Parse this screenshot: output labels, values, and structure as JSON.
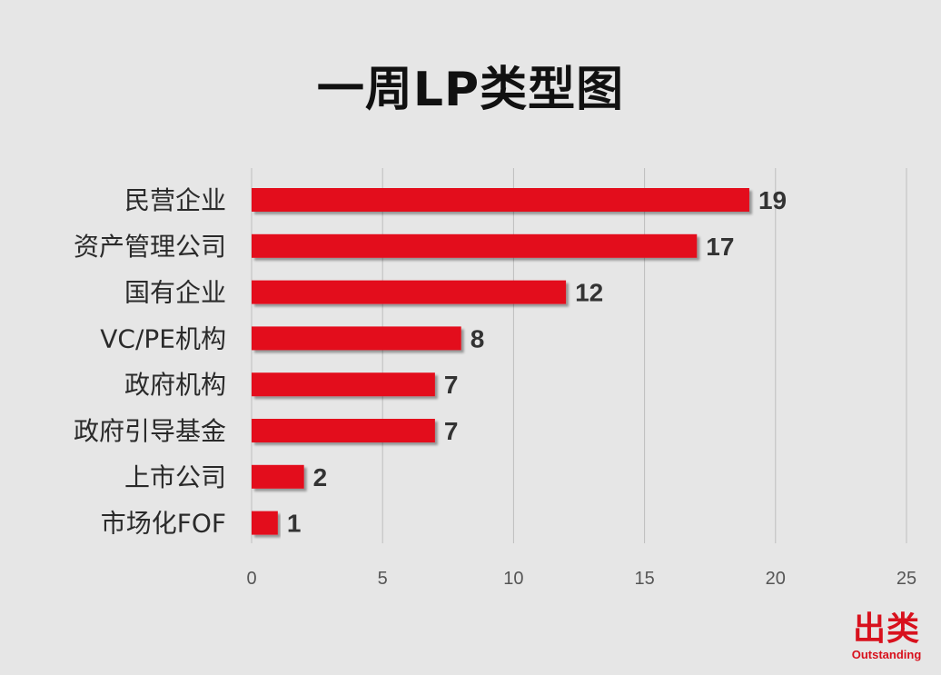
{
  "chart_data": {
    "type": "bar",
    "orientation": "horizontal",
    "title": "一周LP类型图",
    "categories": [
      "民营企业",
      "资产管理公司",
      "国有企业",
      "VC/PE机构",
      "政府机构",
      "政府引导基金",
      "上市公司",
      "市场化FOF"
    ],
    "values": [
      19,
      17,
      12,
      8,
      7,
      7,
      2,
      1
    ],
    "xlim": [
      0,
      25
    ],
    "xticks": [
      0,
      5,
      10,
      15,
      20,
      25
    ],
    "grid": "vertical",
    "bar_color": "#e3101e",
    "data_labels": true,
    "legend": "none"
  },
  "logo": {
    "text": "出类",
    "subtext": "Outstanding",
    "color": "#d8111d"
  }
}
